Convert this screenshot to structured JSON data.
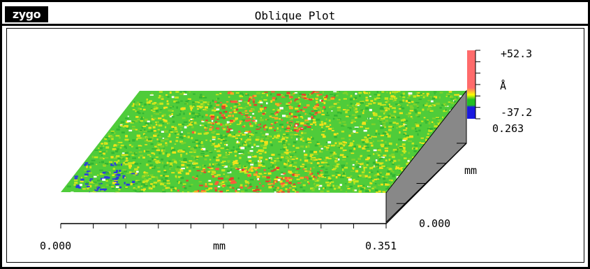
{
  "app": {
    "logo_text": "zygo",
    "title": "Oblique Plot"
  },
  "x_axis": {
    "start_label": "0.000",
    "unit_label": "mm",
    "end_label": "0.351"
  },
  "y_axis": {
    "start_label": "0.000",
    "unit_label": "mm",
    "end_label": "0.263"
  },
  "z_scale": {
    "max_label": "+52.3",
    "unit_label": "Å",
    "min_label": "-37.2"
  },
  "colors": {
    "high": "#ff6b6b",
    "mid": "#22c022",
    "low": "#1a1adf",
    "side": "#888888"
  }
}
